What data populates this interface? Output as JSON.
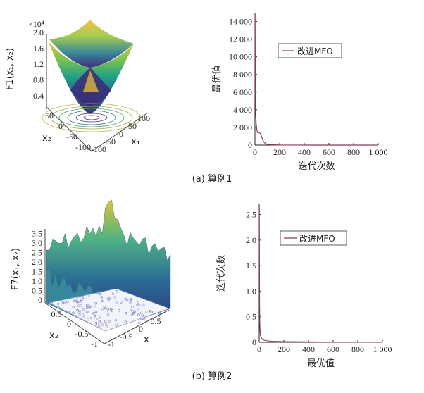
{
  "panel_a": {
    "caption": "(a) 算例1",
    "surface": {
      "multiplier": "×10⁴",
      "zlabel": "F1(x₁, x₂)",
      "zticks": [
        "0.4",
        "0.8",
        "1.2",
        "1.6",
        "2.0"
      ],
      "x1label": "x₁",
      "x2label": "x₂",
      "x1ticks": [
        "-100",
        "-50",
        "0",
        "50",
        "100"
      ],
      "x2ticks": [
        "-100",
        "-50",
        "0",
        "50"
      ]
    }
  },
  "panel_b": {
    "caption": "(b) 算例2",
    "surface": {
      "zlabel": "F7(x₁, x₂)",
      "zticks": [
        "0",
        "0.5",
        "1.0",
        "1.5",
        "2.0",
        "2.5",
        "3.0",
        "3.5"
      ],
      "x1label": "x₁",
      "x2label": "x₂",
      "x1ticks": [
        "-1",
        "-0.5",
        "0",
        "0.5"
      ],
      "x2ticks": [
        "-1",
        "-0.5",
        "0",
        "0.5"
      ]
    }
  },
  "chart_data": [
    {
      "type": "line",
      "id": "a",
      "xlabel": "迭代次数",
      "ylabel": "最优值",
      "xlim": [
        0,
        1000
      ],
      "ylim": [
        0,
        15000
      ],
      "xticks": [
        0,
        200,
        400,
        600,
        800,
        1000
      ],
      "xticklabels": [
        "0",
        "200",
        "400",
        "600",
        "800",
        "1 000"
      ],
      "yticks": [
        0,
        2000,
        4000,
        6000,
        8000,
        10000,
        12000,
        14000
      ],
      "yticklabels": [
        "0",
        "2 000",
        "4 000",
        "6 000",
        "8 000",
        "10 000",
        "12 000",
        "14 000"
      ],
      "legend": "top-center",
      "series": [
        {
          "name": "改进MFO",
          "color": "#8a3a5a",
          "x": [
            1,
            3,
            5,
            8,
            10,
            14,
            18,
            22,
            26,
            30,
            35,
            40,
            45,
            50,
            55,
            60,
            70,
            80,
            90,
            100,
            120,
            150,
            200,
            300,
            500,
            1000
          ],
          "y": [
            14800,
            6500,
            3800,
            3000,
            2400,
            1900,
            1600,
            1450,
            1420,
            1400,
            1380,
            1350,
            1300,
            1100,
            900,
            700,
            400,
            250,
            150,
            90,
            50,
            30,
            10,
            5,
            2,
            1
          ]
        }
      ]
    },
    {
      "type": "line",
      "id": "b",
      "xlabel": "最优值",
      "ylabel": "迭代次数",
      "xlim": [
        0,
        1000
      ],
      "ylim": [
        0,
        2.7
      ],
      "xticks": [
        0,
        200,
        400,
        600,
        800,
        1000
      ],
      "xticklabels": [
        "0",
        "200",
        "400",
        "600",
        "800",
        "1 000"
      ],
      "yticks": [
        0,
        0.5,
        1.0,
        1.5,
        2.0,
        2.5
      ],
      "yticklabels": [
        "0",
        "0.5",
        "1.0",
        "1.5",
        "2.0",
        "2.5"
      ],
      "legend": "top-center",
      "series": [
        {
          "name": "改进MFO",
          "color": "#8a3a5a",
          "x": [
            1,
            3,
            5,
            8,
            10,
            15,
            20,
            25,
            30,
            40,
            60,
            80,
            100,
            150,
            200,
            300,
            500,
            1000
          ],
          "y": [
            2.65,
            0.7,
            0.35,
            0.2,
            0.14,
            0.1,
            0.08,
            0.06,
            0.05,
            0.04,
            0.03,
            0.025,
            0.02,
            0.015,
            0.012,
            0.01,
            0.005,
            0.002
          ]
        }
      ]
    }
  ]
}
